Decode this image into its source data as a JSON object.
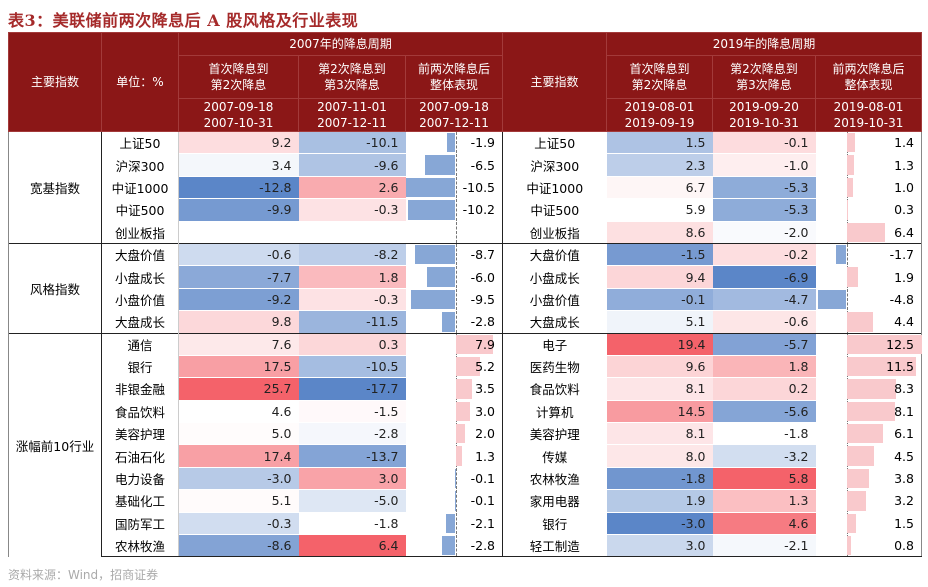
{
  "title": "表3：美联储前两次降息后 A 股风格及行业表现",
  "source": "资料来源：Wind，招商证券",
  "header": {
    "main_index": "主要指数",
    "unit": "单位：%",
    "period_2007": "2007年的降息周期",
    "period_2019": "2019年的降息周期",
    "main_index_19": "主要指数",
    "cols_2007": [
      {
        "l1": "首次降息到",
        "l2": "第2次降息",
        "d1": "2007-09-18",
        "d2": "2007-10-31"
      },
      {
        "l1": "第2次降息到",
        "l2": "第3次降息",
        "d1": "2007-11-01",
        "d2": "2007-12-11"
      },
      {
        "l1": "前两次降息后",
        "l2": "整体表现",
        "d1": "2007-09-18",
        "d2": "2007-12-11"
      }
    ],
    "cols_2019": [
      {
        "l1": "首次降息到",
        "l2": "第2次降息",
        "d1": "2019-08-01",
        "d2": "2019-09-19"
      },
      {
        "l1": "第2次降息到",
        "l2": "第3次降息",
        "d1": "2019-09-20",
        "d2": "2019-10-31"
      },
      {
        "l1": "前两次降息后",
        "l2": "整体表现",
        "d1": "2019-08-01",
        "d2": "2019-10-31"
      }
    ]
  },
  "colors": {
    "header": "#8b1717",
    "pos": "#f4626a",
    "neg": "#5b86c8",
    "bar_pos": "#f9c9cc",
    "bar_neg": "#87a7d6"
  },
  "sections": [
    {
      "group": "宽基指数",
      "rows": [
        {
          "n07": "上证50",
          "v07": [
            "9.2",
            "-10.1",
            "-1.9"
          ],
          "n19": "上证50",
          "v19": [
            "1.5",
            "-0.1",
            "1.4"
          ]
        },
        {
          "n07": "沪深300",
          "v07": [
            "3.4",
            "-9.6",
            "-6.5"
          ],
          "n19": "沪深300",
          "v19": [
            "2.3",
            "-1.0",
            "1.3"
          ]
        },
        {
          "n07": "中证1000",
          "v07": [
            "-12.8",
            "2.6",
            "-10.5"
          ],
          "n19": "中证1000",
          "v19": [
            "6.7",
            "-5.3",
            "1.0"
          ]
        },
        {
          "n07": "中证500",
          "v07": [
            "-9.9",
            "-0.3",
            "-10.2"
          ],
          "n19": "中证500",
          "v19": [
            "5.9",
            "-5.3",
            "0.3"
          ]
        },
        {
          "n07": "创业板指",
          "v07": [
            "",
            "",
            ""
          ],
          "n19": "创业板指",
          "v19": [
            "8.6",
            "-2.0",
            "6.4"
          ]
        }
      ]
    },
    {
      "group": "风格指数",
      "rows": [
        {
          "n07": "大盘价值",
          "v07": [
            "-0.6",
            "-8.2",
            "-8.7"
          ],
          "n19": "大盘价值",
          "v19": [
            "-1.5",
            "-0.2",
            "-1.7"
          ]
        },
        {
          "n07": "小盘成长",
          "v07": [
            "-7.7",
            "1.8",
            "-6.0"
          ],
          "n19": "小盘成长",
          "v19": [
            "9.4",
            "-6.9",
            "1.9"
          ]
        },
        {
          "n07": "小盘价值",
          "v07": [
            "-9.2",
            "-0.3",
            "-9.5"
          ],
          "n19": "小盘价值",
          "v19": [
            "-0.1",
            "-4.7",
            "-4.8"
          ]
        },
        {
          "n07": "大盘成长",
          "v07": [
            "9.8",
            "-11.5",
            "-2.8"
          ],
          "n19": "大盘成长",
          "v19": [
            "5.1",
            "-0.6",
            "4.4"
          ]
        }
      ]
    },
    {
      "group": "涨幅前10行业",
      "rows": [
        {
          "n07": "通信",
          "v07": [
            "7.6",
            "0.3",
            "7.9"
          ],
          "n19": "电子",
          "v19": [
            "19.4",
            "-5.7",
            "12.5"
          ]
        },
        {
          "n07": "银行",
          "v07": [
            "17.5",
            "-10.5",
            "5.2"
          ],
          "n19": "医药生物",
          "v19": [
            "9.6",
            "1.8",
            "11.5"
          ]
        },
        {
          "n07": "非银金融",
          "v07": [
            "25.7",
            "-17.7",
            "3.5"
          ],
          "n19": "食品饮料",
          "v19": [
            "8.1",
            "0.2",
            "8.3"
          ]
        },
        {
          "n07": "食品饮料",
          "v07": [
            "4.6",
            "-1.5",
            "3.0"
          ],
          "n19": "计算机",
          "v19": [
            "14.5",
            "-5.6",
            "8.1"
          ]
        },
        {
          "n07": "美容护理",
          "v07": [
            "5.0",
            "-2.8",
            "2.0"
          ],
          "n19": "美容护理",
          "v19": [
            "8.1",
            "-1.8",
            "6.1"
          ]
        },
        {
          "n07": "石油石化",
          "v07": [
            "17.4",
            "-13.7",
            "1.3"
          ],
          "n19": "传媒",
          "v19": [
            "8.0",
            "-3.2",
            "4.5"
          ]
        },
        {
          "n07": "电力设备",
          "v07": [
            "-3.0",
            "3.0",
            "-0.1"
          ],
          "n19": "农林牧渔",
          "v19": [
            "-1.8",
            "5.8",
            "3.8"
          ]
        },
        {
          "n07": "基础化工",
          "v07": [
            "5.1",
            "-5.0",
            "-0.1"
          ],
          "n19": "家用电器",
          "v19": [
            "1.9",
            "1.3",
            "3.2"
          ]
        },
        {
          "n07": "国防军工",
          "v07": [
            "-0.3",
            "-1.8",
            "-2.1"
          ],
          "n19": "银行",
          "v19": [
            "-3.0",
            "4.6",
            "1.5"
          ]
        },
        {
          "n07": "农林牧渔",
          "v07": [
            "-8.6",
            "6.4",
            "-2.8"
          ],
          "n19": "轻工制造",
          "v19": [
            "3.0",
            "-2.1",
            "0.8"
          ]
        }
      ]
    }
  ]
}
